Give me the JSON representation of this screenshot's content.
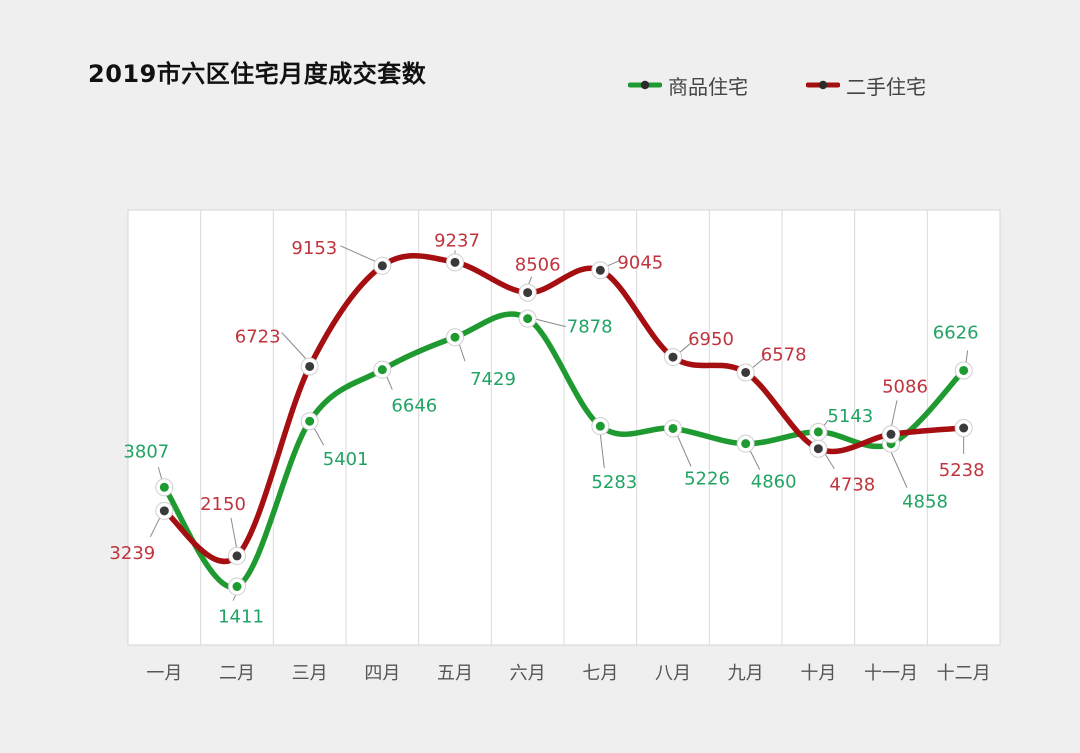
{
  "chart_data": {
    "type": "line",
    "title": "2019市六区住宅月度成交套数",
    "categories": [
      "一月",
      "二月",
      "三月",
      "四月",
      "五月",
      "六月",
      "七月",
      "八月",
      "九月",
      "十月",
      "十一月",
      "十二月"
    ],
    "series": [
      {
        "name": "商品住宅",
        "color": "#1e9a31",
        "label_color": "#21a463",
        "values": [
          3807,
          1411,
          5401,
          6646,
          7429,
          7878,
          5283,
          5226,
          4860,
          5143,
          4858,
          6626
        ]
      },
      {
        "name": "二手住宅",
        "color": "#a50f12",
        "label_color": "#c0343e",
        "values": [
          3239,
          2150,
          6723,
          9153,
          9237,
          8506,
          9045,
          6950,
          6578,
          4738,
          5086,
          5238
        ]
      }
    ],
    "ylim": [
      0,
      10500
    ],
    "grid": "vertical",
    "legend": "top-right"
  }
}
